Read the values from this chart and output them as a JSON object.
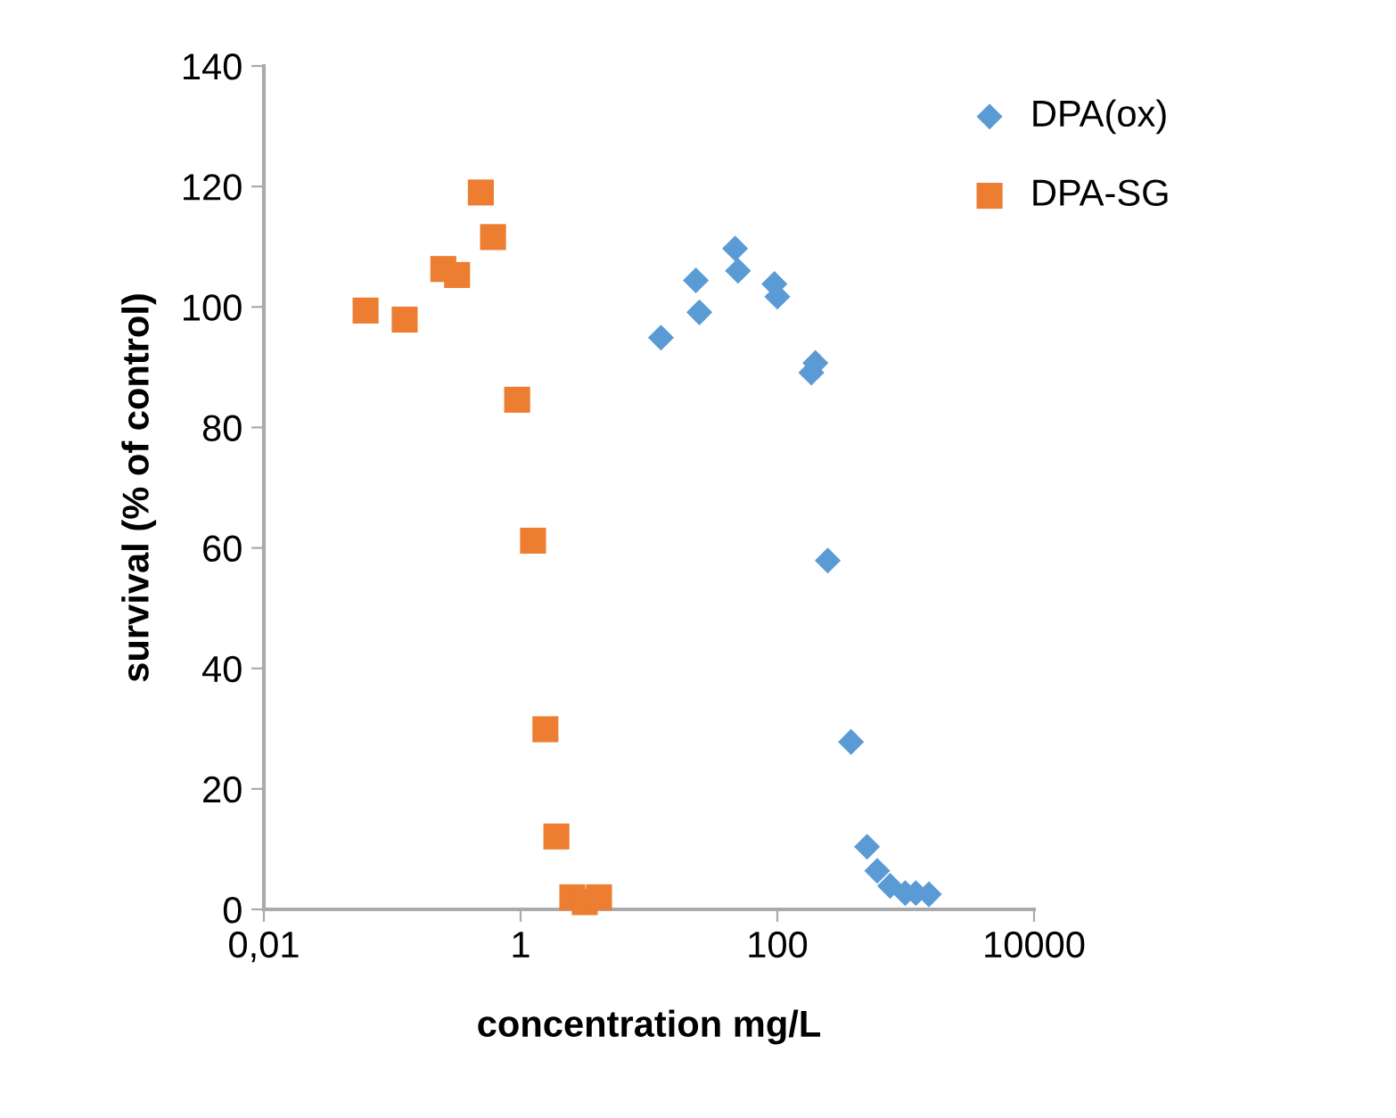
{
  "chart_data": {
    "type": "scatter",
    "xlabel": "concentration mg/L",
    "ylabel": "survival (% of control)",
    "log": "x",
    "xlim": [
      0.01,
      10000
    ],
    "xticks": [
      {
        "value": 0.01,
        "label": "0,01"
      },
      1,
      100,
      10000
    ],
    "ylim": [
      0,
      140
    ],
    "yticks": [
      0,
      20,
      40,
      60,
      80,
      100,
      120,
      140
    ],
    "grid": false,
    "legend": "top right",
    "series": [
      {
        "name": "DPA(ox)",
        "color": "#5b9bd5",
        "marker": "diamond",
        "x": [
          46.9,
          49.4,
          23.2,
          94.9,
          100,
          24.7,
          12.4,
          198,
          184,
          247,
          375,
          500,
          600,
          757,
          990,
          1200,
          1517
        ],
        "values": [
          109.7,
          106.0,
          104.4,
          103.8,
          101.7,
          99.1,
          94.9,
          90.7,
          89.1,
          57.9,
          27.8,
          10.4,
          6.4,
          3.9,
          2.7,
          2.7,
          2.5
        ]
      },
      {
        "name": "DPA-SG",
        "color": "#ed7d31",
        "marker": "square",
        "x": [
          0.49,
          0.61,
          0.25,
          0.32,
          0.062,
          0.125,
          0.94,
          1.25,
          1.56,
          1.9,
          2.53,
          3.16,
          4.08
        ],
        "values": [
          119,
          111.6,
          106.3,
          105.3,
          99.4,
          97.9,
          84.6,
          61.2,
          29.9,
          12.1,
          2,
          1.2,
          2
        ]
      }
    ]
  }
}
